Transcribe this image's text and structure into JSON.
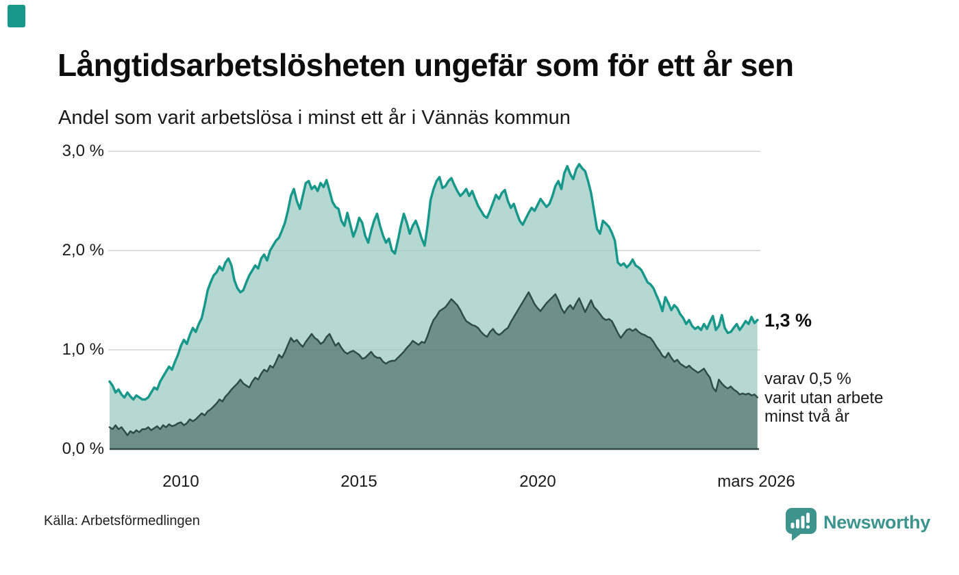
{
  "header": {
    "title": "Långtidsarbetslösheten ungefär som för ett år sen",
    "subtitle": "Andel som varit arbetslösa i minst ett år i Vännäs kommun"
  },
  "footer": {
    "source": "Källa: Arbetsförmedlingen",
    "brand": "Newsworthy"
  },
  "annotations": {
    "series1_value": "1,3 %",
    "series2_lines": [
      "varav 0,5 %",
      "varit utan arbete",
      "minst två år"
    ]
  },
  "colors": {
    "accent_teal": "#17988a",
    "fill_light_teal": "#b5d9d2",
    "line_dark_slate": "#2e4b47",
    "fill_dark_slate": "#6e908b",
    "gridline": "#e2e2e2",
    "brand_teal": "#3d948d"
  },
  "chart_data": {
    "type": "area",
    "title": "Långtidsarbetslösheten ungefär som för ett år sen",
    "subtitle": "Andel som varit arbetslösa i minst ett år i Vännäs kommun",
    "grid": true,
    "legend_position": "right-annotations",
    "x_axis": {
      "range": [
        2008,
        2026.17
      ],
      "ticks": [
        {
          "value": 2010,
          "label": "2010"
        },
        {
          "value": 2015,
          "label": "2015"
        },
        {
          "value": 2020,
          "label": "2020"
        },
        {
          "value": 2026.17,
          "label": "mars 2026"
        }
      ]
    },
    "y_axis": {
      "range": [
        0,
        3
      ],
      "unit": "%",
      "ticks": [
        {
          "value": 0,
          "label": "0,0 %"
        },
        {
          "value": 1,
          "label": "1,0 %"
        },
        {
          "value": 2,
          "label": "2,0 %"
        },
        {
          "value": 3,
          "label": "3,0 %"
        }
      ]
    },
    "frequency": "monthly",
    "series": [
      {
        "name": "Arbetslösa minst ett år",
        "end_label": "1,3 %",
        "end_value": 1.3,
        "line_color": "#17988a",
        "fill_color": "#b5d9d2",
        "line_width": 3.5,
        "start_year": 2008,
        "values": [
          0.68,
          0.64,
          0.57,
          0.6,
          0.55,
          0.52,
          0.57,
          0.53,
          0.5,
          0.54,
          0.52,
          0.5,
          0.5,
          0.52,
          0.57,
          0.62,
          0.6,
          0.68,
          0.73,
          0.78,
          0.83,
          0.8,
          0.88,
          0.95,
          1.04,
          1.1,
          1.06,
          1.15,
          1.22,
          1.18,
          1.26,
          1.32,
          1.45,
          1.6,
          1.68,
          1.75,
          1.78,
          1.84,
          1.8,
          1.88,
          1.92,
          1.85,
          1.7,
          1.62,
          1.58,
          1.6,
          1.68,
          1.75,
          1.8,
          1.85,
          1.82,
          1.92,
          1.96,
          1.9,
          2.0,
          2.05,
          2.1,
          2.13,
          2.2,
          2.28,
          2.4,
          2.55,
          2.62,
          2.5,
          2.42,
          2.55,
          2.68,
          2.7,
          2.62,
          2.65,
          2.6,
          2.68,
          2.64,
          2.71,
          2.6,
          2.49,
          2.44,
          2.42,
          2.3,
          2.25,
          2.38,
          2.26,
          2.14,
          2.22,
          2.33,
          2.28,
          2.15,
          2.08,
          2.2,
          2.3,
          2.37,
          2.25,
          2.15,
          2.08,
          2.12,
          2.0,
          1.97,
          2.1,
          2.25,
          2.37,
          2.28,
          2.17,
          2.25,
          2.3,
          2.22,
          2.12,
          2.05,
          2.25,
          2.51,
          2.62,
          2.7,
          2.74,
          2.63,
          2.65,
          2.7,
          2.73,
          2.66,
          2.6,
          2.55,
          2.58,
          2.62,
          2.55,
          2.6,
          2.52,
          2.45,
          2.4,
          2.35,
          2.33,
          2.4,
          2.48,
          2.56,
          2.52,
          2.58,
          2.61,
          2.5,
          2.43,
          2.47,
          2.38,
          2.3,
          2.26,
          2.32,
          2.38,
          2.43,
          2.4,
          2.46,
          2.52,
          2.48,
          2.44,
          2.47,
          2.55,
          2.65,
          2.7,
          2.62,
          2.78,
          2.85,
          2.77,
          2.72,
          2.82,
          2.87,
          2.83,
          2.8,
          2.7,
          2.58,
          2.4,
          2.22,
          2.17,
          2.3,
          2.27,
          2.24,
          2.18,
          2.1,
          1.88,
          1.85,
          1.87,
          1.83,
          1.86,
          1.91,
          1.85,
          1.83,
          1.8,
          1.74,
          1.68,
          1.66,
          1.62,
          1.55,
          1.48,
          1.39,
          1.53,
          1.47,
          1.4,
          1.45,
          1.42,
          1.36,
          1.32,
          1.26,
          1.3,
          1.24,
          1.21,
          1.23,
          1.2,
          1.26,
          1.21,
          1.28,
          1.34,
          1.2,
          1.24,
          1.35,
          1.22,
          1.17,
          1.18,
          1.22,
          1.26,
          1.2,
          1.24,
          1.29,
          1.26,
          1.33,
          1.27,
          1.3
        ]
      },
      {
        "name": "Arbetslösa minst två år",
        "end_label": "varav 0,5 % varit utan arbete minst två år",
        "end_value": 0.5,
        "line_color": "#2e4b47",
        "fill_color": "#6e908b",
        "line_width": 2.5,
        "start_year": 2008,
        "values": [
          0.22,
          0.2,
          0.24,
          0.2,
          0.22,
          0.18,
          0.14,
          0.18,
          0.16,
          0.19,
          0.17,
          0.2,
          0.2,
          0.22,
          0.19,
          0.21,
          0.23,
          0.2,
          0.24,
          0.22,
          0.25,
          0.23,
          0.24,
          0.26,
          0.27,
          0.24,
          0.26,
          0.3,
          0.28,
          0.3,
          0.33,
          0.36,
          0.34,
          0.38,
          0.4,
          0.43,
          0.46,
          0.5,
          0.48,
          0.53,
          0.56,
          0.6,
          0.63,
          0.66,
          0.7,
          0.66,
          0.64,
          0.62,
          0.68,
          0.72,
          0.7,
          0.76,
          0.8,
          0.78,
          0.84,
          0.82,
          0.88,
          0.95,
          0.92,
          0.98,
          1.05,
          1.12,
          1.08,
          1.1,
          1.06,
          1.03,
          1.08,
          1.12,
          1.16,
          1.12,
          1.1,
          1.06,
          1.08,
          1.13,
          1.16,
          1.1,
          1.04,
          1.07,
          1.02,
          0.98,
          0.96,
          0.98,
          0.99,
          0.97,
          0.95,
          0.91,
          0.92,
          0.95,
          0.98,
          0.94,
          0.92,
          0.92,
          0.88,
          0.86,
          0.88,
          0.89,
          0.89,
          0.92,
          0.95,
          0.98,
          1.02,
          1.05,
          1.09,
          1.07,
          1.05,
          1.08,
          1.07,
          1.14,
          1.23,
          1.3,
          1.34,
          1.39,
          1.41,
          1.43,
          1.47,
          1.51,
          1.48,
          1.45,
          1.4,
          1.34,
          1.29,
          1.27,
          1.25,
          1.24,
          1.22,
          1.18,
          1.15,
          1.13,
          1.18,
          1.21,
          1.17,
          1.15,
          1.17,
          1.2,
          1.22,
          1.28,
          1.33,
          1.38,
          1.43,
          1.48,
          1.53,
          1.58,
          1.52,
          1.46,
          1.42,
          1.39,
          1.43,
          1.47,
          1.5,
          1.53,
          1.56,
          1.5,
          1.42,
          1.37,
          1.42,
          1.45,
          1.41,
          1.47,
          1.52,
          1.45,
          1.38,
          1.44,
          1.5,
          1.43,
          1.4,
          1.36,
          1.32,
          1.3,
          1.31,
          1.29,
          1.23,
          1.17,
          1.12,
          1.16,
          1.2,
          1.21,
          1.19,
          1.21,
          1.18,
          1.16,
          1.15,
          1.13,
          1.12,
          1.08,
          1.03,
          0.99,
          0.94,
          0.92,
          0.97,
          0.92,
          0.88,
          0.9,
          0.86,
          0.84,
          0.82,
          0.84,
          0.81,
          0.79,
          0.77,
          0.79,
          0.81,
          0.76,
          0.72,
          0.62,
          0.58,
          0.7,
          0.66,
          0.63,
          0.61,
          0.63,
          0.6,
          0.58,
          0.55,
          0.56,
          0.55,
          0.56,
          0.54,
          0.55,
          0.52
        ]
      }
    ]
  }
}
